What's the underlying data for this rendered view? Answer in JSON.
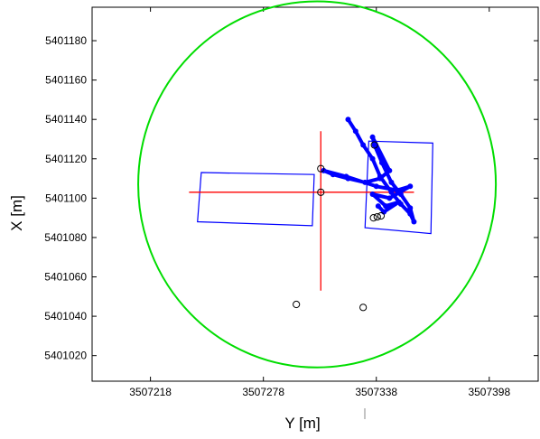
{
  "chart_data": {
    "type": "scatter",
    "title": "",
    "xlabel": "Y [m]",
    "ylabel": "X [m]",
    "xlim": [
      3507187,
      3507424
    ],
    "ylim": [
      5401007,
      5401197
    ],
    "xticks": [
      {
        "value": 3507218,
        "label": "3507218"
      },
      {
        "value": 3507278,
        "label": "3507278"
      },
      {
        "value": 3507338,
        "label": "3507338"
      },
      {
        "value": 3507398,
        "label": "3507398"
      }
    ],
    "yticks": [
      {
        "value": 5401020,
        "label": "5401020"
      },
      {
        "value": 5401040,
        "label": "5401040"
      },
      {
        "value": 5401060,
        "label": "5401060"
      },
      {
        "value": 5401080,
        "label": "5401080"
      },
      {
        "value": 5401100,
        "label": "5401100"
      },
      {
        "value": 5401120,
        "label": "5401120"
      },
      {
        "value": 5401140,
        "label": "5401140"
      },
      {
        "value": 5401160,
        "label": "5401160"
      },
      {
        "value": 5401180,
        "label": "5401180"
      }
    ],
    "grid": false,
    "colors": {
      "circle": "#00dd00",
      "crosshair": "#ff0000",
      "rectangles": "#0000ff",
      "track": "#0000ff",
      "markers": "#000000"
    },
    "circle": {
      "center": [
        5401107,
        3507306.5
      ],
      "radius_y": 95,
      "radius_x": 93
    },
    "crosshair": {
      "center": [
        5401103,
        3507308.5
      ],
      "x_extent": [
        3507238.5,
        3507358
      ],
      "y_extent": [
        5401053,
        5401134
      ]
    },
    "rectangles": [
      {
        "name": "left",
        "corners": [
          [
            3507245,
            5401113
          ],
          [
            3507305,
            5401112
          ],
          [
            3507304,
            5401086
          ],
          [
            3507243,
            5401088
          ]
        ]
      },
      {
        "name": "right",
        "corners": [
          [
            3507334,
            5401129
          ],
          [
            3507368,
            5401128
          ],
          [
            3507367,
            5401082
          ],
          [
            3507332,
            5401085
          ]
        ]
      }
    ],
    "track": [
      [
        3507323,
        5401140
      ],
      [
        3507327,
        5401134
      ],
      [
        3507331,
        5401127
      ],
      [
        3507336,
        5401120
      ],
      [
        3507340,
        5401111
      ],
      [
        3507346,
        5401103
      ],
      [
        3507351,
        5401097
      ],
      [
        3507356,
        5401092
      ],
      [
        3507358,
        5401088
      ],
      [
        3507356,
        5401095
      ],
      [
        3507351,
        5401102
      ],
      [
        3507346,
        5401108
      ],
      [
        3507341,
        5401118
      ],
      [
        3507337,
        5401127
      ],
      [
        3507336,
        5401131
      ],
      [
        3507345,
        5401114
      ],
      [
        3507340,
        5401110
      ],
      [
        3507332,
        5401108
      ],
      [
        3507323,
        5401110
      ],
      [
        3507315,
        5401112
      ],
      [
        3507310,
        5401114
      ],
      [
        3507322,
        5401111
      ],
      [
        3507338,
        5401106
      ],
      [
        3507349,
        5401104
      ],
      [
        3507356,
        5401106
      ],
      [
        3507345,
        5401100
      ],
      [
        3507336,
        5401102
      ],
      [
        3507343,
        5401096
      ],
      [
        3507350,
        5401098
      ],
      [
        3507342,
        5401093
      ],
      [
        3507339,
        5401096
      ]
    ],
    "markers": [
      [
        3507308.5,
        5401115
      ],
      [
        3507308.5,
        5401103
      ],
      [
        3507337,
        5401127
      ],
      [
        3507336.5,
        5401090
      ],
      [
        3507338.5,
        5401090.5
      ],
      [
        3507340.5,
        5401091
      ],
      [
        3507295.5,
        5401046
      ],
      [
        3507331,
        5401044.5
      ]
    ]
  }
}
